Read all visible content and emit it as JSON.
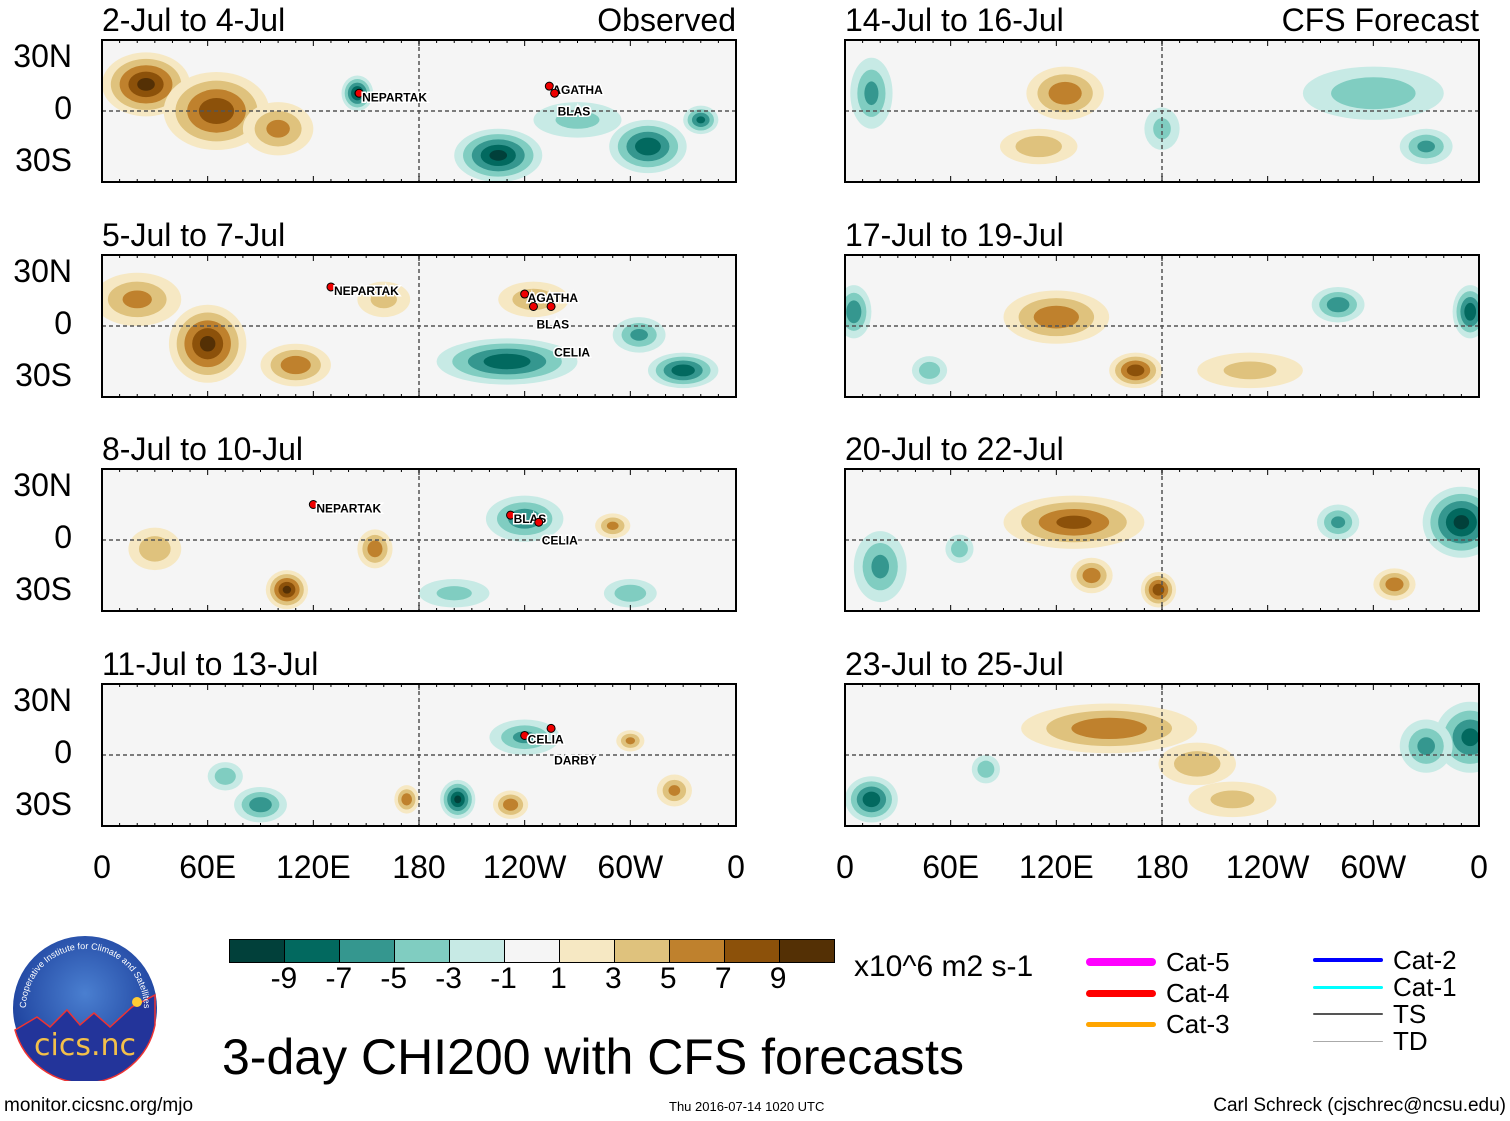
{
  "title": "3-day CHI200 with CFS forecasts",
  "footer": {
    "url": "monitor.cicsnc.org/mjo",
    "timestamp": "Thu 2016-07-14 1020 UTC",
    "author": "Carl Schreck (cjschrec@ncsu.edu)"
  },
  "logo": {
    "name": "cics.nc",
    "ring": "Cooperative Institute for Climate and Satellites"
  },
  "column_labels": {
    "observed": "Observed",
    "forecast": "CFS Forecast"
  },
  "lat_labels": [
    "30N",
    "0",
    "30S"
  ],
  "lon_labels": [
    "0",
    "60E",
    "120E",
    "180",
    "120W",
    "60W",
    "0"
  ],
  "colorbar": {
    "units": "x10^6 m2 s-1",
    "ticks": [
      "-9",
      "-7",
      "-5",
      "-3",
      "-1",
      "1",
      "3",
      "5",
      "7",
      "9"
    ],
    "colors": [
      "#01403a",
      "#02695f",
      "#35978f",
      "#80cdc1",
      "#c7eae5",
      "#f5f5f5",
      "#f6e8c3",
      "#dfc27d",
      "#bf812d",
      "#8c510a",
      "#543005"
    ]
  },
  "storm_legend": [
    {
      "label": "Cat-5",
      "color": "#ff00ff"
    },
    {
      "label": "Cat-4",
      "color": "#ff0000"
    },
    {
      "label": "Cat-3",
      "color": "#ffa500"
    },
    {
      "label": "Cat-2",
      "color": "#0000ff"
    },
    {
      "label": "Cat-1",
      "color": "#00ffff"
    },
    {
      "label": "TS",
      "color": "#555555"
    },
    {
      "label": "TD",
      "color": "#aaaaaa"
    }
  ],
  "chart_data": [
    {
      "type": "heatmap",
      "title": "2-Jul to 4-Jul",
      "column": "observed",
      "xlim": [
        0,
        360
      ],
      "ylim": [
        -40,
        40
      ],
      "anomalies": [
        {
          "lon": 25,
          "lat": 15,
          "value": 9,
          "rlon": 25,
          "rlat": 18
        },
        {
          "lon": 65,
          "lat": 0,
          "value": 8,
          "rlon": 30,
          "rlat": 22
        },
        {
          "lon": 100,
          "lat": -10,
          "value": 5,
          "rlon": 20,
          "rlat": 15
        },
        {
          "lon": 145,
          "lat": 10,
          "value": -9,
          "rlon": 9,
          "rlat": 10
        },
        {
          "lon": 225,
          "lat": -25,
          "value": -9,
          "rlon": 25,
          "rlat": 15
        },
        {
          "lon": 310,
          "lat": -20,
          "value": -8,
          "rlon": 22,
          "rlat": 15
        },
        {
          "lon": 340,
          "lat": -5,
          "value": -7,
          "rlon": 10,
          "rlat": 8
        },
        {
          "lon": 270,
          "lat": -5,
          "value": -3,
          "rlon": 25,
          "rlat": 10
        }
      ],
      "storms": [
        {
          "name": "NEPARTAK",
          "lon": 146,
          "lat": 10
        },
        {
          "name": "AGATHA",
          "lon": 254,
          "lat": 14
        },
        {
          "name": "BLAS",
          "lon": 257,
          "lat": 10
        }
      ]
    },
    {
      "type": "heatmap",
      "title": "5-Jul to 7-Jul",
      "column": "observed",
      "xlim": [
        0,
        360
      ],
      "ylim": [
        -40,
        40
      ],
      "anomalies": [
        {
          "lon": 60,
          "lat": -10,
          "value": 9,
          "rlon": 22,
          "rlat": 22
        },
        {
          "lon": 20,
          "lat": 15,
          "value": 5,
          "rlon": 25,
          "rlat": 15
        },
        {
          "lon": 110,
          "lat": -22,
          "value": 6,
          "rlon": 20,
          "rlat": 12
        },
        {
          "lon": 230,
          "lat": -20,
          "value": -8,
          "rlon": 40,
          "rlat": 13
        },
        {
          "lon": 330,
          "lat": -25,
          "value": -8,
          "rlon": 20,
          "rlat": 10
        },
        {
          "lon": 305,
          "lat": -5,
          "value": -5,
          "rlon": 15,
          "rlat": 10
        },
        {
          "lon": 245,
          "lat": 15,
          "value": 4,
          "rlon": 20,
          "rlat": 10
        },
        {
          "lon": 160,
          "lat": 15,
          "value": 3,
          "rlon": 15,
          "rlat": 10
        }
      ],
      "storms": [
        {
          "name": "NEPARTAK",
          "lon": 130,
          "lat": 22
        },
        {
          "name": "AGATHA",
          "lon": 240,
          "lat": 18
        },
        {
          "name": "BLAS",
          "lon": 245,
          "lat": 11
        },
        {
          "name": "CELIA",
          "lon": 255,
          "lat": 11
        }
      ]
    },
    {
      "type": "heatmap",
      "title": "8-Jul to 10-Jul",
      "column": "observed",
      "xlim": [
        0,
        360
      ],
      "ylim": [
        -40,
        40
      ],
      "anomalies": [
        {
          "lon": 240,
          "lat": 12,
          "value": -6,
          "rlon": 22,
          "rlat": 13
        },
        {
          "lon": 105,
          "lat": -28,
          "value": 9,
          "rlon": 12,
          "rlat": 11
        },
        {
          "lon": 155,
          "lat": -5,
          "value": 6,
          "rlon": 10,
          "rlat": 11
        },
        {
          "lon": 30,
          "lat": -5,
          "value": 4,
          "rlon": 15,
          "rlat": 12
        },
        {
          "lon": 290,
          "lat": 8,
          "value": 5,
          "rlon": 10,
          "rlat": 7
        },
        {
          "lon": 300,
          "lat": -30,
          "value": -4,
          "rlon": 15,
          "rlat": 8
        },
        {
          "lon": 200,
          "lat": -30,
          "value": -3,
          "rlon": 20,
          "rlat": 8
        }
      ],
      "storms": [
        {
          "name": "NEPARTAK",
          "lon": 120,
          "lat": 20
        },
        {
          "name": "BLAS",
          "lon": 232,
          "lat": 14
        },
        {
          "name": "CELIA",
          "lon": 248,
          "lat": 10
        }
      ]
    },
    {
      "type": "heatmap",
      "title": "11-Jul to 13-Jul",
      "column": "observed",
      "xlim": [
        0,
        360
      ],
      "ylim": [
        -40,
        40
      ],
      "anomalies": [
        {
          "lon": 202,
          "lat": -25,
          "value": -9,
          "rlon": 10,
          "rlat": 11
        },
        {
          "lon": 240,
          "lat": 10,
          "value": -5,
          "rlon": 20,
          "rlat": 10
        },
        {
          "lon": 173,
          "lat": -25,
          "value": 6,
          "rlon": 7,
          "rlat": 8
        },
        {
          "lon": 232,
          "lat": -28,
          "value": 6,
          "rlon": 10,
          "rlat": 8
        },
        {
          "lon": 325,
          "lat": -20,
          "value": 5,
          "rlon": 10,
          "rlat": 9
        },
        {
          "lon": 90,
          "lat": -28,
          "value": -6,
          "rlon": 15,
          "rlat": 10
        },
        {
          "lon": 70,
          "lat": -12,
          "value": -4,
          "rlon": 10,
          "rlat": 8
        },
        {
          "lon": 300,
          "lat": 8,
          "value": 5,
          "rlon": 8,
          "rlat": 6
        }
      ],
      "storms": [
        {
          "name": "CELIA",
          "lon": 240,
          "lat": 11
        },
        {
          "name": "DARBY",
          "lon": 255,
          "lat": 15
        }
      ]
    },
    {
      "type": "heatmap",
      "title": "14-Jul to 16-Jul",
      "column": "forecast",
      "xlim": [
        0,
        360
      ],
      "ylim": [
        -40,
        40
      ],
      "anomalies": [
        {
          "lon": 125,
          "lat": 10,
          "value": 6,
          "rlon": 22,
          "rlat": 15
        },
        {
          "lon": 110,
          "lat": -20,
          "value": 4,
          "rlon": 22,
          "rlat": 10
        },
        {
          "lon": 15,
          "lat": 10,
          "value": -5,
          "rlon": 12,
          "rlat": 20
        },
        {
          "lon": 300,
          "lat": 10,
          "value": -4,
          "rlon": 40,
          "rlat": 15
        },
        {
          "lon": 330,
          "lat": -20,
          "value": -5,
          "rlon": 15,
          "rlat": 10
        },
        {
          "lon": 180,
          "lat": -10,
          "value": -3,
          "rlon": 10,
          "rlat": 12
        }
      ],
      "storms": []
    },
    {
      "type": "heatmap",
      "title": "17-Jul to 19-Jul",
      "column": "forecast",
      "xlim": [
        0,
        360
      ],
      "ylim": [
        -40,
        40
      ],
      "anomalies": [
        {
          "lon": 120,
          "lat": 5,
          "value": 6,
          "rlon": 30,
          "rlat": 15
        },
        {
          "lon": 165,
          "lat": -25,
          "value": 8,
          "rlon": 15,
          "rlat": 10
        },
        {
          "lon": 280,
          "lat": 12,
          "value": -6,
          "rlon": 15,
          "rlat": 10
        },
        {
          "lon": 355,
          "lat": 8,
          "value": -8,
          "rlon": 10,
          "rlat": 15
        },
        {
          "lon": 5,
          "lat": 8,
          "value": -6,
          "rlon": 10,
          "rlat": 15
        },
        {
          "lon": 48,
          "lat": -25,
          "value": -4,
          "rlon": 10,
          "rlat": 8
        },
        {
          "lon": 230,
          "lat": -25,
          "value": 3,
          "rlon": 30,
          "rlat": 10
        }
      ],
      "storms": []
    },
    {
      "type": "heatmap",
      "title": "20-Jul to 22-Jul",
      "column": "forecast",
      "xlim": [
        0,
        360
      ],
      "ylim": [
        -40,
        40
      ],
      "anomalies": [
        {
          "lon": 130,
          "lat": 10,
          "value": 7,
          "rlon": 40,
          "rlat": 15
        },
        {
          "lon": 178,
          "lat": -28,
          "value": 8,
          "rlon": 10,
          "rlat": 10
        },
        {
          "lon": 140,
          "lat": -20,
          "value": 6,
          "rlon": 12,
          "rlat": 10
        },
        {
          "lon": 312,
          "lat": -25,
          "value": 6,
          "rlon": 12,
          "rlat": 9
        },
        {
          "lon": 350,
          "lat": 10,
          "value": -9,
          "rlon": 22,
          "rlat": 20
        },
        {
          "lon": 280,
          "lat": 10,
          "value": -5,
          "rlon": 12,
          "rlat": 10
        },
        {
          "lon": 20,
          "lat": -15,
          "value": -5,
          "rlon": 15,
          "rlat": 20
        },
        {
          "lon": 65,
          "lat": -5,
          "value": -4,
          "rlon": 8,
          "rlat": 8
        }
      ],
      "storms": []
    },
    {
      "type": "heatmap",
      "title": "23-Jul to 25-Jul",
      "column": "forecast",
      "xlim": [
        0,
        360
      ],
      "ylim": [
        -40,
        40
      ],
      "anomalies": [
        {
          "lon": 150,
          "lat": 15,
          "value": 6,
          "rlon": 50,
          "rlat": 14
        },
        {
          "lon": 200,
          "lat": -5,
          "value": 4,
          "rlon": 22,
          "rlat": 12
        },
        {
          "lon": 15,
          "lat": -25,
          "value": -8,
          "rlon": 15,
          "rlat": 13
        },
        {
          "lon": 355,
          "lat": 10,
          "value": -7,
          "rlon": 20,
          "rlat": 20
        },
        {
          "lon": 330,
          "lat": 5,
          "value": -5,
          "rlon": 15,
          "rlat": 15
        },
        {
          "lon": 80,
          "lat": -8,
          "value": -4,
          "rlon": 8,
          "rlat": 8
        },
        {
          "lon": 220,
          "lat": -25,
          "value": 3,
          "rlon": 25,
          "rlat": 10
        }
      ],
      "storms": []
    }
  ]
}
